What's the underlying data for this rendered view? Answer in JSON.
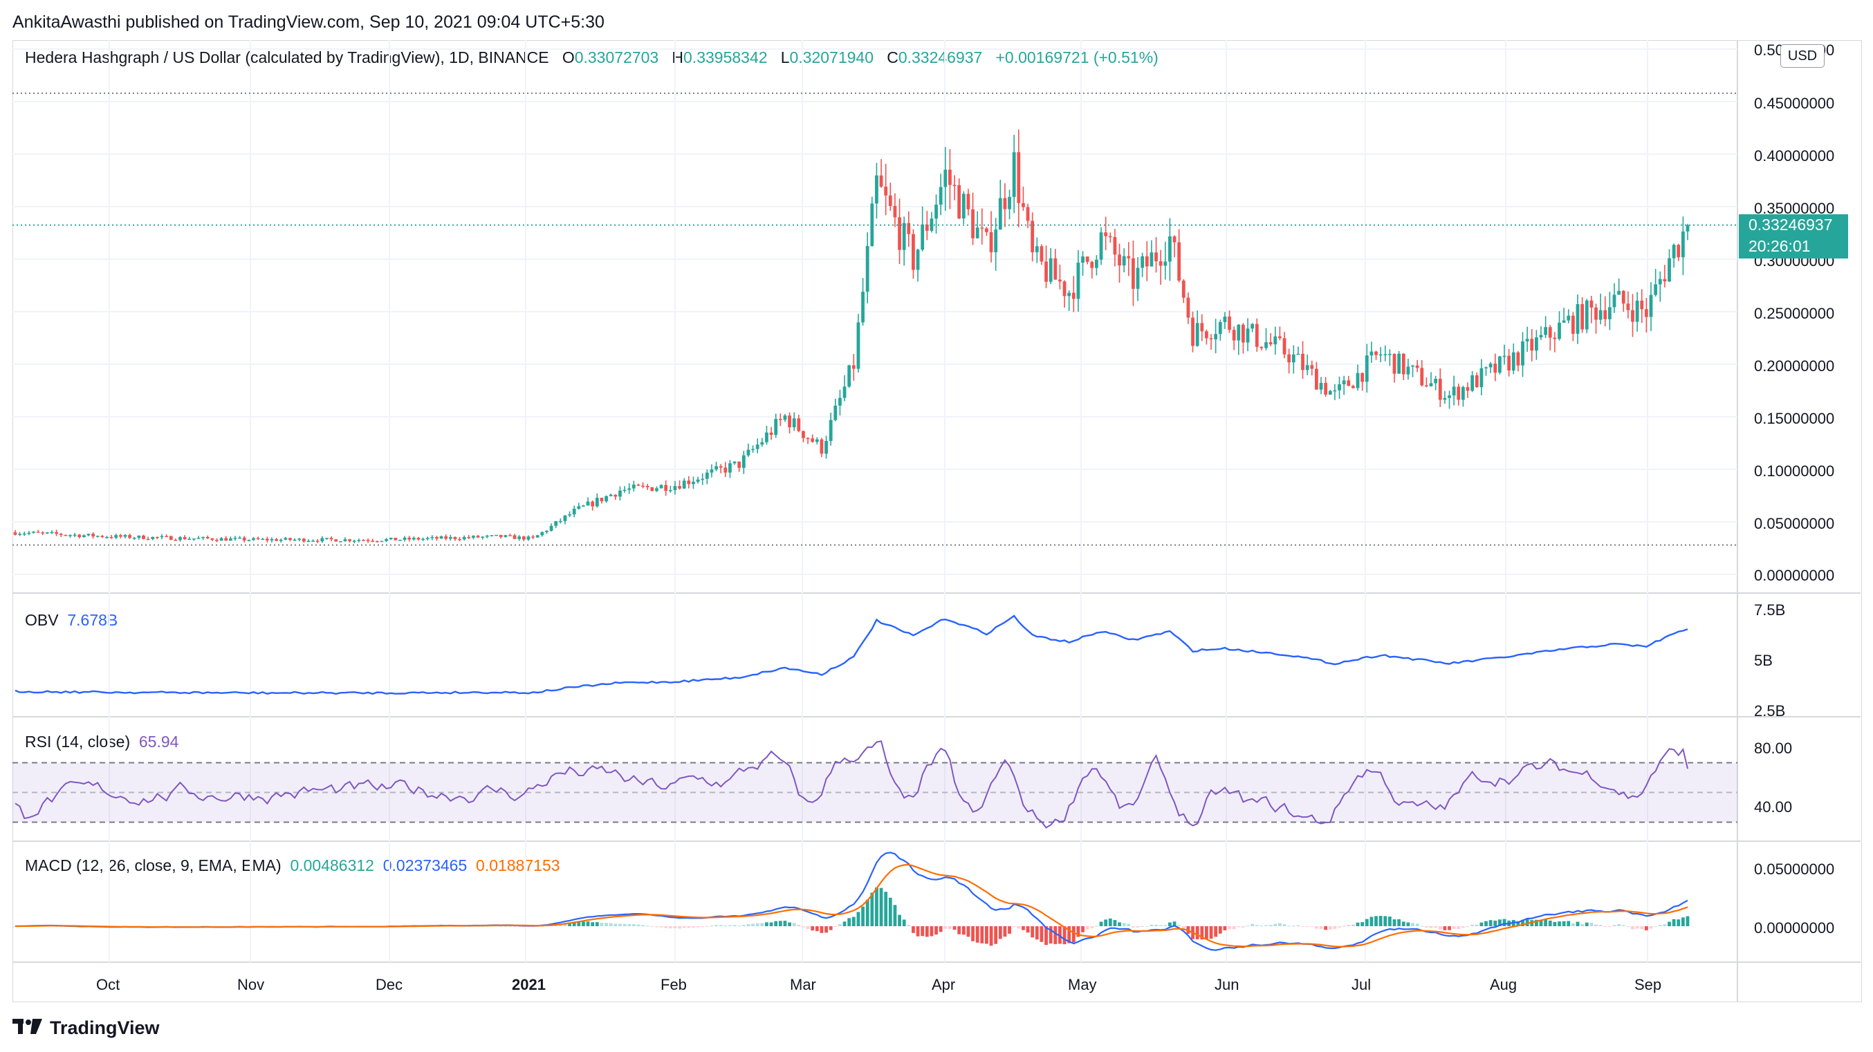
{
  "header": {
    "published_text": "AnkitaAwasthi published on TradingView.com, Sep 10, 2021 09:04 UTC+5:30"
  },
  "symbol": {
    "title": "Hedera Hashgraph / US Dollar (calculated by TradingView), 1D, BINANCE",
    "o_label": "O",
    "o_value": "0.33072703",
    "h_label": "H",
    "h_value": "0.33958342",
    "l_label": "L",
    "l_value": "0.32071940",
    "c_label": "C",
    "c_value": "0.33246937",
    "change": "+0.00169721 (+0.51%)"
  },
  "price_axis": {
    "currency": "USD",
    "ticks": [
      "0.50000000",
      "0.45000000",
      "0.40000000",
      "0.35000000",
      "0.30000000",
      "0.25000000",
      "0.20000000",
      "0.15000000",
      "0.10000000",
      "0.05000000",
      "0.00000000"
    ],
    "last_price": "0.33246937",
    "countdown": "20:26:01"
  },
  "obv": {
    "label": "OBV",
    "value": "7.678B",
    "ticks": [
      "7.5B",
      "5B",
      "2.5B"
    ]
  },
  "rsi": {
    "label": "RSI (14, close)",
    "value": "65.94",
    "ticks": [
      "80.00",
      "40.00"
    ]
  },
  "macd": {
    "label": "MACD (12, 26, close, 9, EMA, EMA)",
    "v1": "0.00486312",
    "v2": "0.02373465",
    "v3": "0.01887153",
    "ticks": [
      "0.05000000",
      "0.00000000"
    ]
  },
  "time_axis": {
    "labels": [
      "Oct",
      "Nov",
      "Dec",
      "2021",
      "Feb",
      "Mar",
      "Apr",
      "May",
      "Jun",
      "Jul",
      "Aug",
      "Sep"
    ]
  },
  "footer": {
    "brand": "TradingView"
  },
  "colors": {
    "up": "#26a69a",
    "down": "#ef5350",
    "obv": "#2962ff",
    "rsi": "#7e57c2",
    "macd": "#2962ff",
    "signal": "#ff6d00"
  },
  "chart_data": {
    "type": "candlestick",
    "title": "Hedera Hashgraph / US Dollar (calculated by TradingView), 1D, BINANCE",
    "x_range": [
      "2020-09-10",
      "2021-09-10"
    ],
    "ylim": [
      0,
      0.5
    ],
    "close_path": [
      [
        "2020-09-10",
        0.04
      ],
      [
        "2020-10-01",
        0.036
      ],
      [
        "2020-11-01",
        0.033
      ],
      [
        "2020-12-01",
        0.033
      ],
      [
        "2020-12-25",
        0.036
      ],
      [
        "2021-01-01",
        0.034
      ],
      [
        "2021-01-10",
        0.06
      ],
      [
        "2021-01-20",
        0.08
      ],
      [
        "2021-02-01",
        0.085
      ],
      [
        "2021-02-15",
        0.105
      ],
      [
        "2021-02-25",
        0.15
      ],
      [
        "2021-03-05",
        0.12
      ],
      [
        "2021-03-12",
        0.2
      ],
      [
        "2021-03-17",
        0.37
      ],
      [
        "2021-03-25",
        0.3
      ],
      [
        "2021-04-01",
        0.38
      ],
      [
        "2021-04-10",
        0.31
      ],
      [
        "2021-04-16",
        0.39
      ],
      [
        "2021-04-20",
        0.3
      ],
      [
        "2021-04-28",
        0.27
      ],
      [
        "2021-05-05",
        0.32
      ],
      [
        "2021-05-12",
        0.28
      ],
      [
        "2021-05-20",
        0.32
      ],
      [
        "2021-05-25",
        0.23
      ],
      [
        "2021-06-01",
        0.24
      ],
      [
        "2021-06-15",
        0.21
      ],
      [
        "2021-06-25",
        0.17
      ],
      [
        "2021-07-05",
        0.21
      ],
      [
        "2021-07-20",
        0.17
      ],
      [
        "2021-08-01",
        0.2
      ],
      [
        "2021-08-15",
        0.24
      ],
      [
        "2021-08-25",
        0.26
      ],
      [
        "2021-09-01",
        0.25
      ],
      [
        "2021-09-06",
        0.3
      ],
      [
        "2021-09-10",
        0.332
      ]
    ]
  }
}
